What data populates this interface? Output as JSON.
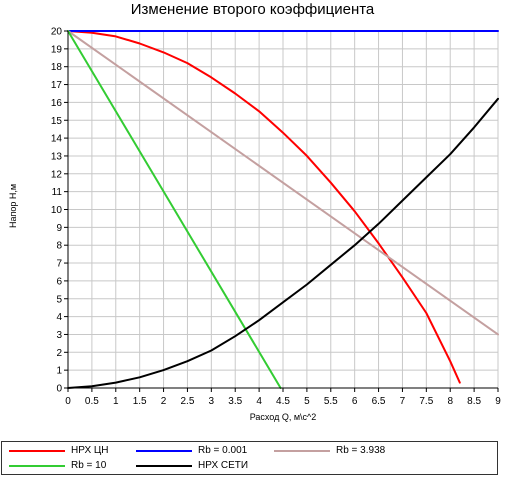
{
  "chart_data": {
    "type": "line",
    "title": "Изменение второго коэффициента",
    "xlabel": "Расход Q, м\\с^2",
    "ylabel": "Напор H,м",
    "xlim": [
      0,
      9
    ],
    "ylim": [
      0,
      20
    ],
    "x_ticks": [
      "0",
      "0.5",
      "1",
      "1.5",
      "2",
      "2.5",
      "3",
      "3.5",
      "4",
      "4.5",
      "5",
      "5.5",
      "6",
      "6.5",
      "7",
      "7.5",
      "8",
      "8.5",
      "9"
    ],
    "y_ticks": [
      "0",
      "1",
      "2",
      "3",
      "4",
      "5",
      "6",
      "7",
      "8",
      "9",
      "10",
      "11",
      "12",
      "13",
      "14",
      "15",
      "16",
      "17",
      "18",
      "19",
      "20"
    ],
    "grid": true,
    "legend_position": "bottom",
    "series": [
      {
        "name": "НРХ ЦН",
        "color": "#ff0000",
        "x": [
          0,
          0.5,
          1,
          1.5,
          2,
          2.5,
          3,
          3.5,
          4,
          4.5,
          5,
          5.5,
          6,
          6.5,
          7,
          7.5,
          8,
          8.2
        ],
        "y": [
          20,
          19.9,
          19.7,
          19.3,
          18.8,
          18.2,
          17.4,
          16.5,
          15.5,
          14.3,
          13.0,
          11.5,
          9.9,
          8.1,
          6.2,
          4.2,
          1.5,
          0.3
        ]
      },
      {
        "name": "Rb = 0.001",
        "color": "#0000ff",
        "x": [
          0,
          9
        ],
        "y": [
          20,
          20
        ]
      },
      {
        "name": "Rb = 3.938",
        "color": "#c4a0a0",
        "x": [
          0,
          9
        ],
        "y": [
          20,
          3.0
        ]
      },
      {
        "name": "Rb = 10",
        "color": "#33cc33",
        "x": [
          0,
          4.45
        ],
        "y": [
          20,
          0
        ]
      },
      {
        "name": "НРХ СЕТИ",
        "color": "#000000",
        "x": [
          0,
          0.5,
          1,
          1.5,
          2,
          2.5,
          3,
          3.5,
          4,
          4.5,
          5,
          5.5,
          6,
          6.5,
          7,
          7.5,
          8,
          8.5,
          9
        ],
        "y": [
          0,
          0.1,
          0.3,
          0.6,
          1.0,
          1.5,
          2.1,
          2.9,
          3.8,
          4.8,
          5.8,
          6.9,
          8.0,
          9.2,
          10.5,
          11.8,
          13.1,
          14.6,
          16.2
        ]
      }
    ]
  }
}
